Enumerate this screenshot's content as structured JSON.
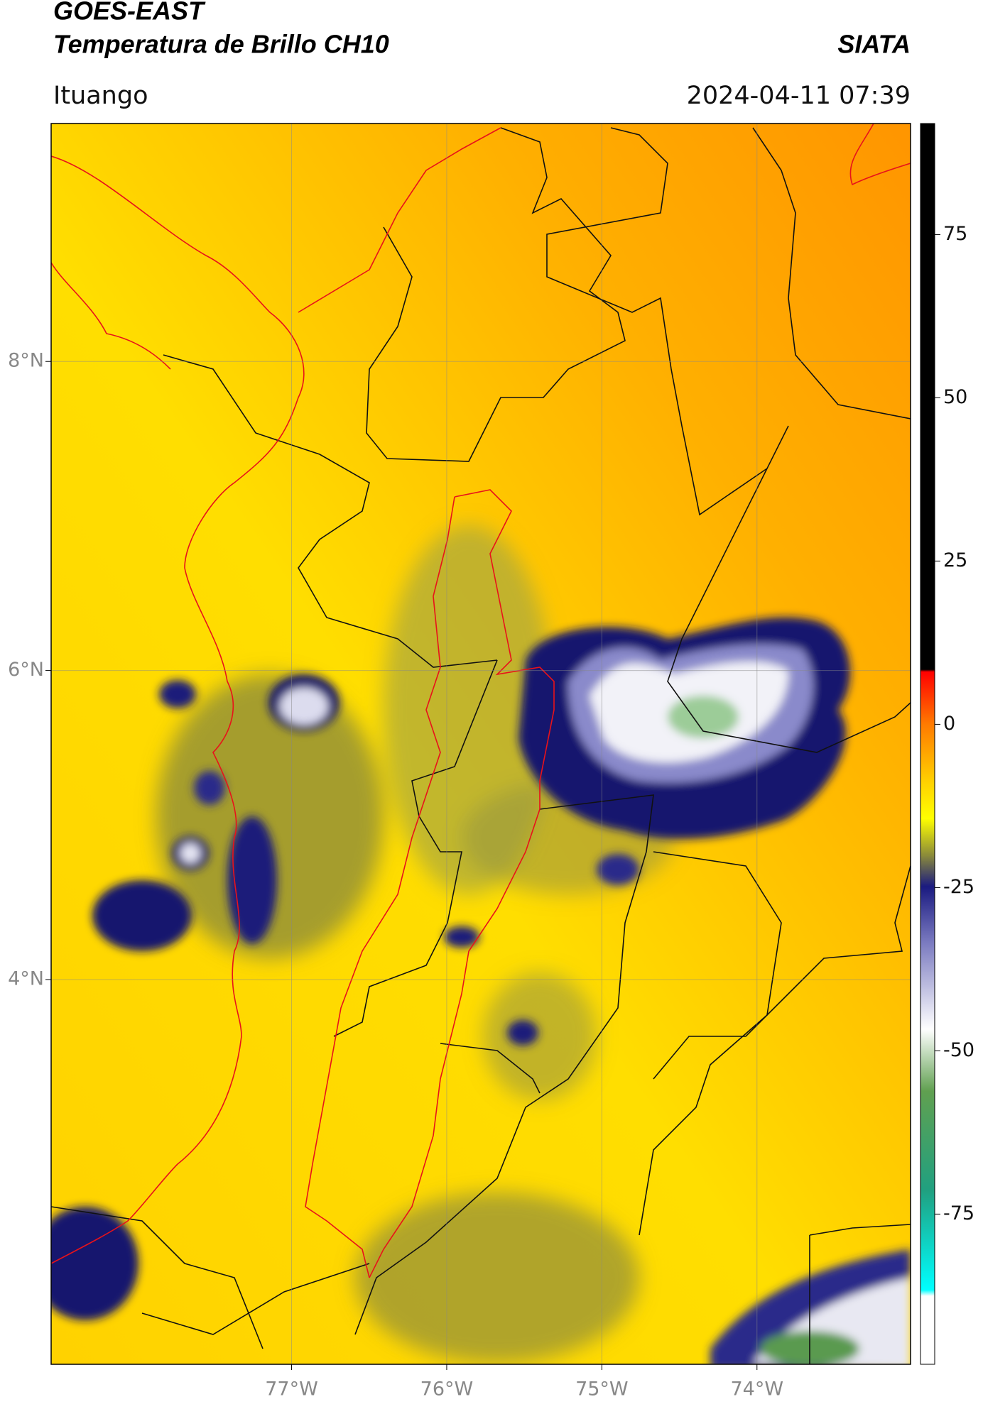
{
  "header": {
    "title_line1": "GOES-EAST",
    "title_line2": "Temperatura de Brillo CH10",
    "source": "SIATA",
    "location": "Ituango",
    "timestamp": "2024-04-11 07:39"
  },
  "map": {
    "lon_range": [
      -78.55,
      -73.01
    ],
    "lat_range": [
      1.51,
      9.54
    ],
    "lon_ticks": [
      {
        "value": -77,
        "label": "77°W"
      },
      {
        "value": -76,
        "label": "76°W"
      },
      {
        "value": -75,
        "label": "75°W"
      },
      {
        "value": -74,
        "label": "74°W"
      }
    ],
    "lat_ticks": [
      {
        "value": 8,
        "label": "8°N"
      },
      {
        "value": 6,
        "label": "6°N"
      },
      {
        "value": 4,
        "label": "4°N"
      }
    ]
  },
  "colorbar": {
    "range": [
      -98,
      92
    ],
    "ticks": [
      75,
      50,
      25,
      0,
      -25,
      -50,
      -75
    ]
  }
}
